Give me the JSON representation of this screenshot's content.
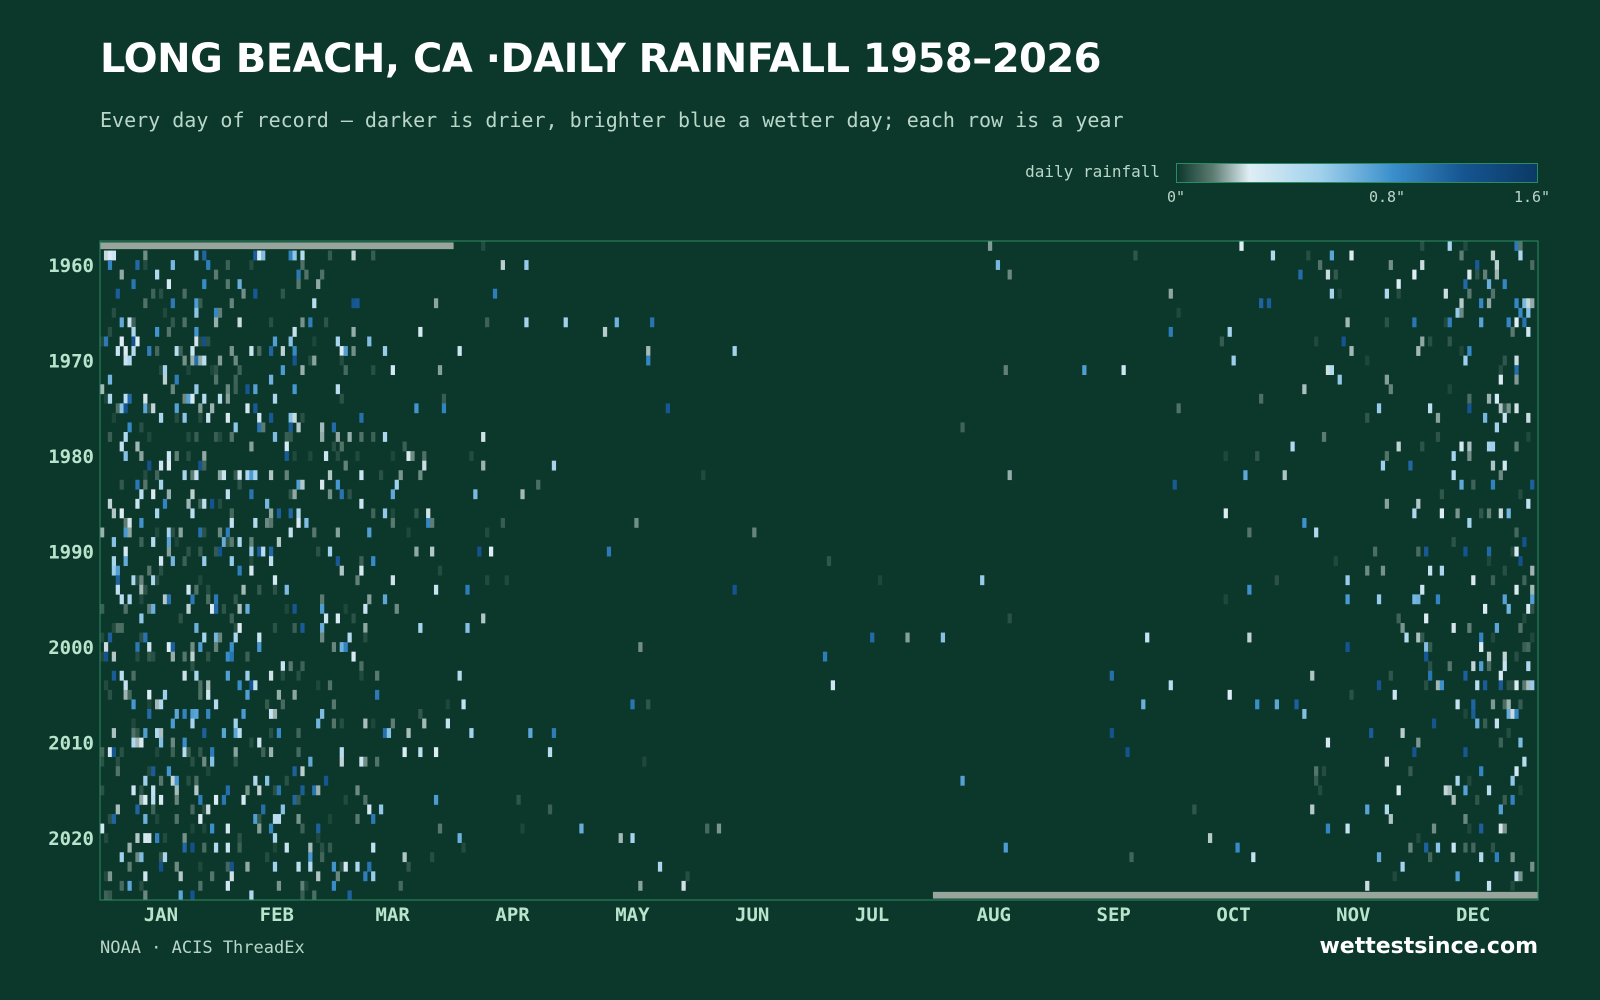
{
  "title": "LONG BEACH, CA ·DAILY RAINFALL 1958–2026",
  "subtitle": "Every day of record — darker is drier, brighter blue a wetter day; each row is a year",
  "legend": {
    "label": "daily rainfall",
    "ticks": [
      "0\"",
      "0.8\"",
      "1.6\""
    ],
    "min": 0,
    "max": 1.6
  },
  "footer": {
    "source": "NOAA · ACIS ThreadEx",
    "brand": "wettestsince.com"
  },
  "colors": {
    "background": "#0c382b",
    "plot_border": "#2a8c63",
    "axis_text": "#b9e3cc",
    "no_data": "#97a59d",
    "scale": [
      "#0c382b",
      "#5d7c72",
      "#dfeef4",
      "#9fd0ec",
      "#3a8fcb",
      "#15548f",
      "#0b3a66"
    ]
  },
  "chart_data": {
    "type": "heatmap",
    "x_axis": "day of year",
    "y_axis": "year",
    "year_range": [
      1958,
      2026
    ],
    "month_labels": [
      "JAN",
      "FEB",
      "MAR",
      "APR",
      "MAY",
      "JUN",
      "JUL",
      "AUG",
      "SEP",
      "OCT",
      "NOV",
      "DEC"
    ],
    "year_ticks": [
      1960,
      1970,
      1980,
      1990,
      2000,
      2010,
      2020
    ],
    "value_range": [
      0,
      1.6
    ],
    "value_unit": "inches",
    "no_data": [
      {
        "year": 1958,
        "from_month": "JAN",
        "to_month": "MAR"
      },
      {
        "year": 2026,
        "from_month": "AUG",
        "to_month": "DEC"
      }
    ]
  }
}
